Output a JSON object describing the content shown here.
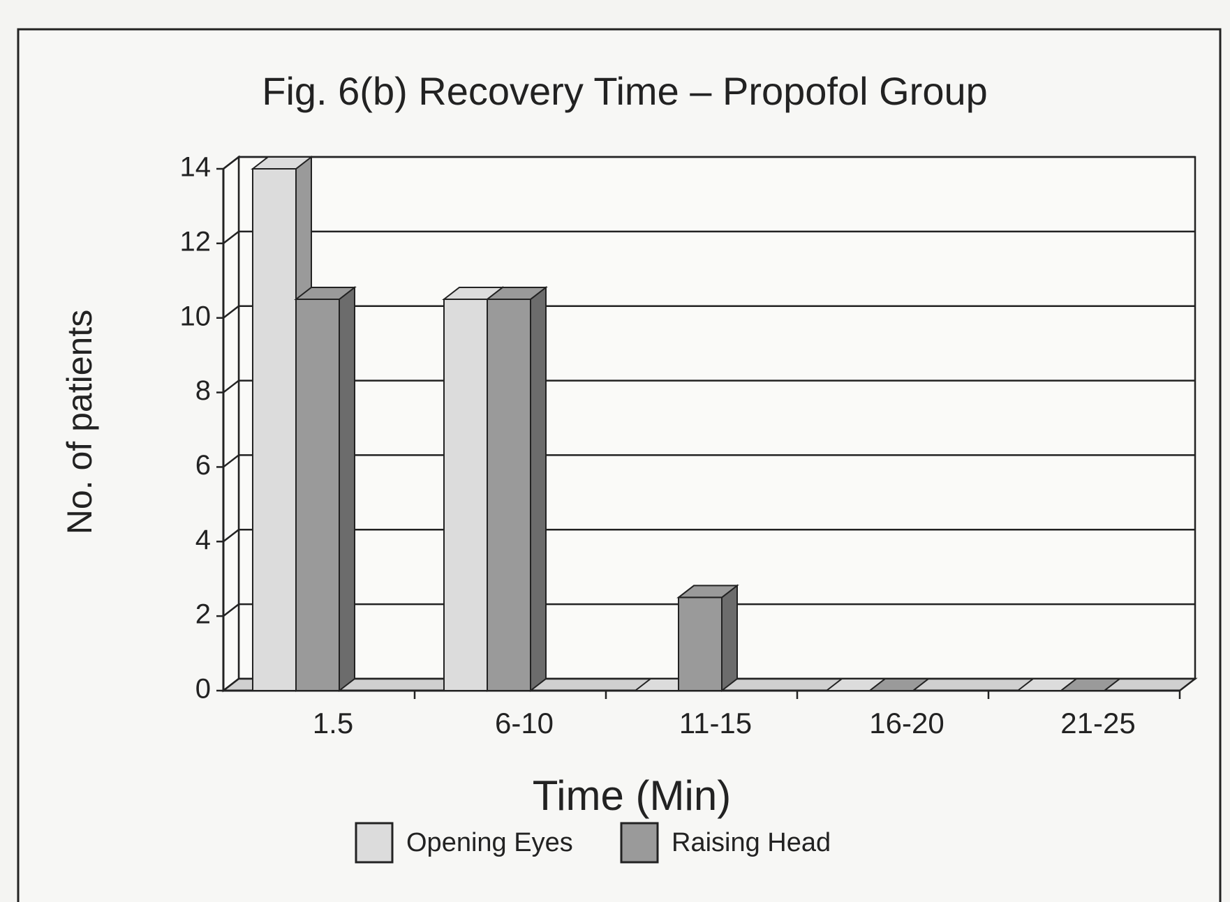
{
  "chart_data": {
    "type": "bar3d",
    "title": "Fig. 6(b)  Recovery Time – Propofol Group",
    "x_label": "Time (Min)",
    "y_label": "No. of patients",
    "categories": [
      "1.5",
      "6-10",
      "11-15",
      "16-20",
      "21-25"
    ],
    "series": [
      {
        "name": "Opening Eyes",
        "color": "#dcdcdc",
        "values": [
          14,
          10.5,
          0,
          0,
          0
        ]
      },
      {
        "name": "Raising Head",
        "color": "#9a9a9a",
        "values": [
          10.5,
          10.5,
          2.5,
          0,
          0
        ]
      }
    ],
    "ylim": [
      0,
      14
    ],
    "yticks": [
      0,
      2,
      4,
      6,
      8,
      10,
      12,
      14
    ],
    "grid": true
  }
}
